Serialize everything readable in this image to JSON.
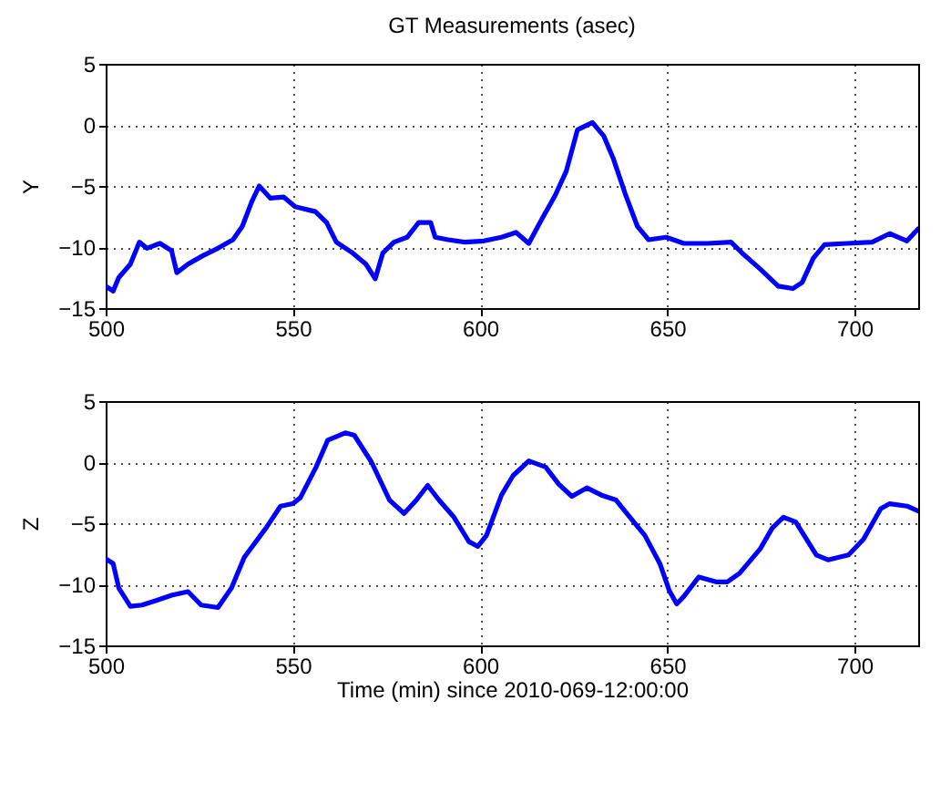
{
  "chart_data": [
    {
      "type": "line",
      "title": "GT Measurements (asec)",
      "ylabel": "Y",
      "xlim": [
        500,
        717
      ],
      "xticks": [
        500,
        550,
        600,
        650,
        700
      ],
      "ylim": [
        -15,
        5
      ],
      "yticks": [
        -15,
        -10,
        -5,
        0,
        5
      ],
      "grid": true,
      "x": [
        500,
        502,
        503.5,
        506.6,
        509,
        511,
        514.5,
        517.6,
        519,
        522,
        526,
        530,
        534,
        536.5,
        539,
        541,
        544,
        547.5,
        550.6,
        556,
        559,
        561.6,
        566,
        569.5,
        572,
        574,
        577,
        580.5,
        583.6,
        586.8,
        588,
        591.5,
        596,
        601,
        605.7,
        609.6,
        613,
        616.7,
        620,
        623,
        626,
        630,
        633,
        635.5,
        638.7,
        642,
        645,
        649.7,
        654.4,
        660.7,
        667,
        670,
        674.8,
        679.6,
        683.5,
        686,
        689,
        692,
        698,
        704.7,
        709.4,
        714,
        717
      ],
      "series": [
        {
          "color": "#0000ff",
          "values": [
            -13.2,
            -13.6,
            -12.5,
            -11.4,
            -9.6,
            -10.1,
            -9.7,
            -10.3,
            -12.1,
            -11.4,
            -10.7,
            -10.1,
            -9.4,
            -8.3,
            -6.3,
            -5.0,
            -6.0,
            -5.9,
            -6.7,
            -7.1,
            -8.0,
            -9.6,
            -10.5,
            -11.4,
            -12.6,
            -10.5,
            -9.6,
            -9.2,
            -8.0,
            -8.0,
            -9.2,
            -9.4,
            -9.6,
            -9.5,
            -9.2,
            -8.8,
            -9.7,
            -7.6,
            -5.8,
            -3.8,
            -0.4,
            0.2,
            -0.9,
            -2.7,
            -5.6,
            -8.3,
            -9.4,
            -9.2,
            -9.7,
            -9.7,
            -9.6,
            -10.5,
            -11.8,
            -13.2,
            -13.4,
            -12.9,
            -10.9,
            -9.8,
            -9.7,
            -9.6,
            -8.9,
            -9.5,
            -8.5
          ]
        }
      ]
    },
    {
      "type": "line",
      "xlabel": "Time (min) since 2010-069-12:00:00",
      "ylabel": "Z",
      "xlim": [
        500,
        717
      ],
      "xticks": [
        500,
        550,
        600,
        650,
        700
      ],
      "ylim": [
        -15,
        5
      ],
      "yticks": [
        -15,
        -10,
        -5,
        0,
        5
      ],
      "grid": true,
      "x": [
        500,
        502,
        503.5,
        506.6,
        509.7,
        513.7,
        517.6,
        522,
        525.5,
        530,
        533.6,
        537,
        542.8,
        546.7,
        550,
        552,
        556.2,
        559.3,
        564,
        566.4,
        571,
        575.8,
        579.7,
        583,
        586,
        589,
        593,
        597,
        599.4,
        601.7,
        605.7,
        608.8,
        613,
        617.5,
        621,
        624.5,
        628.5,
        632.4,
        636.3,
        640,
        644,
        648,
        650.5,
        652.5,
        654.4,
        658.4,
        663,
        666,
        669.3,
        674.8,
        678,
        681,
        684.3,
        689.8,
        692.9,
        698.4,
        702.4,
        707,
        709.4,
        714,
        717
      ],
      "series": [
        {
          "color": "#0000ff",
          "values": [
            -7.9,
            -8.3,
            -10.3,
            -11.8,
            -11.7,
            -11.3,
            -10.9,
            -10.6,
            -11.7,
            -11.9,
            -10.3,
            -7.8,
            -5.4,
            -3.6,
            -3.4,
            -2.9,
            -0.4,
            1.8,
            2.4,
            2.2,
            0,
            -3.1,
            -4.2,
            -3.1,
            -1.9,
            -3.1,
            -4.5,
            -6.5,
            -6.9,
            -6.0,
            -2.7,
            -1.1,
            0.1,
            -0.4,
            -1.8,
            -2.8,
            -2.1,
            -2.7,
            -3.1,
            -4.5,
            -6.0,
            -8.3,
            -10.5,
            -11.6,
            -11.0,
            -9.4,
            -9.8,
            -9.8,
            -9.1,
            -7.1,
            -5.4,
            -4.5,
            -4.9,
            -7.6,
            -8.0,
            -7.6,
            -6.3,
            -3.8,
            -3.4,
            -3.6,
            -4.0
          ]
        }
      ]
    }
  ]
}
